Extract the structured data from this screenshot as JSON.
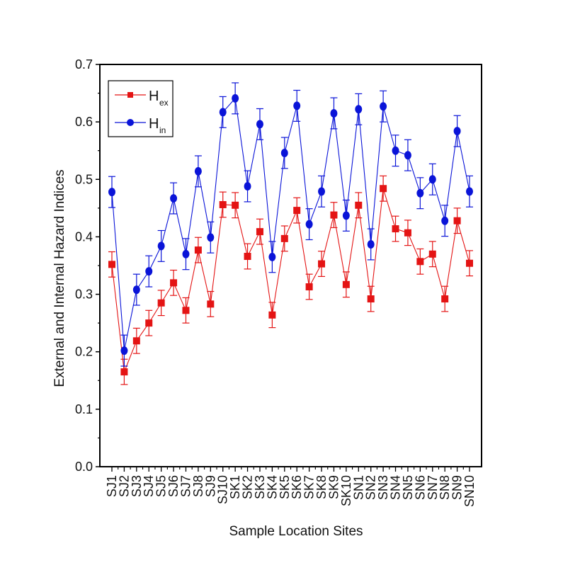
{
  "chart_data": {
    "type": "line",
    "title": "",
    "xlabel": "Sample Location Sites",
    "ylabel": "External and Internal Hazard Indices",
    "ylim": [
      0.0,
      0.7
    ],
    "yticks": [
      "0.0",
      "0.1",
      "0.2",
      "0.3",
      "0.4",
      "0.5",
      "0.6",
      "0.7"
    ],
    "ytick_values": [
      0.0,
      0.1,
      0.2,
      0.3,
      0.4,
      0.5,
      0.6,
      0.7
    ],
    "grid": false,
    "legend_position": "top-left",
    "categories": [
      "SJ1",
      "SJ2",
      "SJ3",
      "SJ4",
      "SJ5",
      "SJ6",
      "SJ7",
      "SJ8",
      "SJ9",
      "SJ10",
      "SK1",
      "SK2",
      "SK3",
      "SK4",
      "SK5",
      "SK6",
      "SK7",
      "SK8",
      "SK9",
      "SK10",
      "SN1",
      "SN2",
      "SN3",
      "SN4",
      "SN5",
      "SN6",
      "SN7",
      "SN8",
      "SN9",
      "SN10"
    ],
    "series": [
      {
        "name": "Hex",
        "legend_main": "H",
        "legend_sub": "ex",
        "color": "#e41414",
        "marker": "square",
        "values": [
          0.352,
          0.165,
          0.219,
          0.25,
          0.285,
          0.32,
          0.272,
          0.377,
          0.283,
          0.456,
          0.455,
          0.366,
          0.409,
          0.264,
          0.397,
          0.446,
          0.313,
          0.353,
          0.438,
          0.317,
          0.455,
          0.292,
          0.484,
          0.414,
          0.407,
          0.357,
          0.37,
          0.292,
          0.428,
          0.354
        ],
        "error": 0.022
      },
      {
        "name": "Hin",
        "legend_main": "H",
        "legend_sub": "in",
        "color": "#0a14d8",
        "marker": "circle",
        "values": [
          0.478,
          0.202,
          0.308,
          0.34,
          0.384,
          0.467,
          0.37,
          0.514,
          0.399,
          0.617,
          0.641,
          0.488,
          0.596,
          0.365,
          0.546,
          0.628,
          0.422,
          0.479,
          0.615,
          0.437,
          0.622,
          0.387,
          0.627,
          0.55,
          0.542,
          0.476,
          0.5,
          0.428,
          0.584,
          0.479
        ],
        "error": 0.027
      }
    ]
  }
}
